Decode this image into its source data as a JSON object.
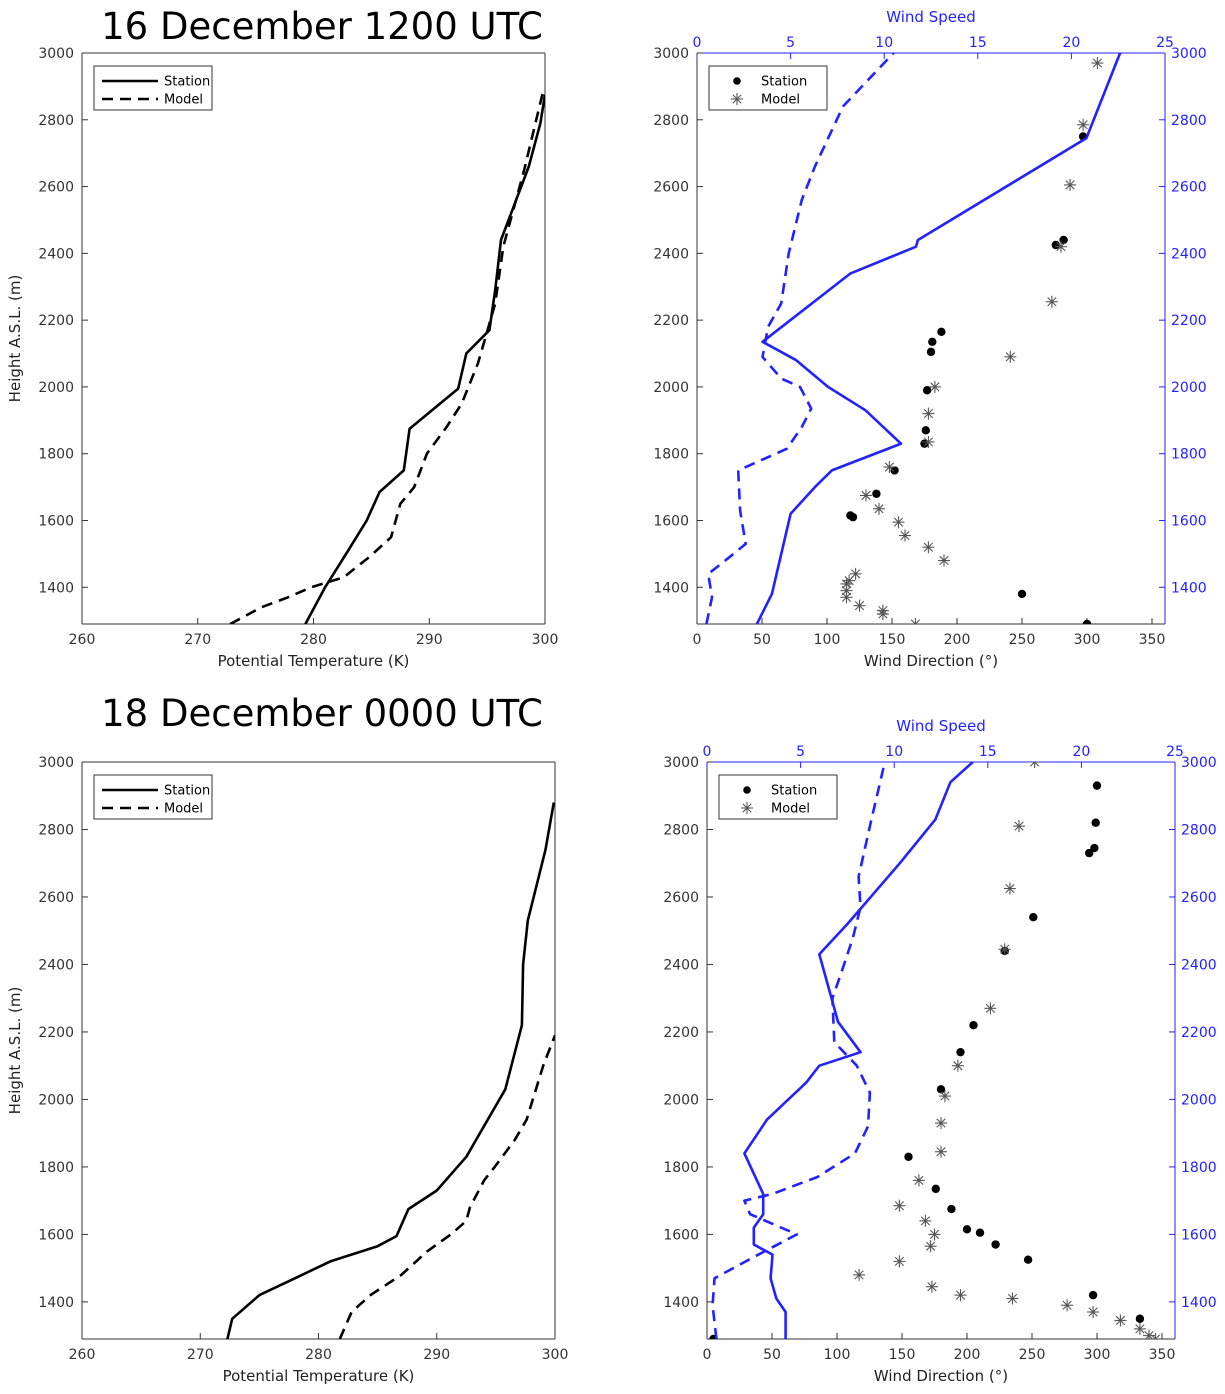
{
  "titles": [
    "16 December 1200 UTC",
    "18 December 0000 UTC"
  ],
  "chart_data": [
    {
      "type": "line",
      "title": "16 December 1200 UTC",
      "xlabel": "Potential Temperature (K)",
      "ylabel": "Height A.S.L. (m)",
      "xlim": [
        260,
        300
      ],
      "ylim": [
        1290,
        3000
      ],
      "xticks": [
        260,
        270,
        280,
        290,
        300
      ],
      "yticks": [
        1400,
        1600,
        1800,
        2000,
        2200,
        2400,
        2600,
        2800,
        3000
      ],
      "legend": "top-left",
      "series": [
        {
          "name": "Station",
          "style": "solid",
          "color": "#000000",
          "points": [
            [
              279.3,
              1290
            ],
            [
              281.0,
              1400
            ],
            [
              283.0,
              1510
            ],
            [
              284.6,
              1600
            ],
            [
              285.7,
              1685
            ],
            [
              287.8,
              1750
            ],
            [
              288.3,
              1875
            ],
            [
              292.5,
              1995
            ],
            [
              293.2,
              2100
            ],
            [
              295.2,
              2170
            ],
            [
              295.7,
              2290
            ],
            [
              296.2,
              2440
            ],
            [
              298.6,
              2660
            ],
            [
              299.6,
              2790
            ],
            [
              300.0,
              2875
            ]
          ]
        },
        {
          "name": "Model",
          "style": "dashed",
          "color": "#000000",
          "points": [
            [
              272.8,
              1290
            ],
            [
              275.5,
              1340
            ],
            [
              277.8,
              1370
            ],
            [
              279.8,
              1400
            ],
            [
              282.6,
              1430
            ],
            [
              284.8,
              1490
            ],
            [
              286.7,
              1550
            ],
            [
              287.5,
              1650
            ],
            [
              288.7,
              1700
            ],
            [
              289.8,
              1800
            ],
            [
              291.5,
              1880
            ],
            [
              292.8,
              1950
            ],
            [
              294.2,
              2070
            ],
            [
              295.0,
              2165
            ],
            [
              295.7,
              2250
            ],
            [
              296.4,
              2420
            ],
            [
              298.2,
              2650
            ],
            [
              299.8,
              2880
            ]
          ]
        }
      ]
    },
    {
      "type": "scatter",
      "title": "",
      "xlabel": "Wind Direction (°)",
      "x2label": "Wind Speed",
      "xlim": [
        0,
        360
      ],
      "x2lim": [
        0,
        25
      ],
      "ylim": [
        1290,
        3000
      ],
      "xticks": [
        0,
        50,
        100,
        150,
        200,
        250,
        300,
        350
      ],
      "x2ticks": [
        0,
        5,
        10,
        15,
        20,
        25
      ],
      "yticks": [
        1400,
        1600,
        1800,
        2000,
        2200,
        2400,
        2600,
        2800,
        3000
      ],
      "legend": "top-left",
      "series": [
        {
          "name": "Station",
          "marker": "dot",
          "color": "#000000",
          "axis": "direction",
          "points": [
            [
              300,
              1290
            ],
            [
              250,
              1380
            ],
            [
              120,
              1610
            ],
            [
              118,
              1615
            ],
            [
              138,
              1680
            ],
            [
              152,
              1750
            ],
            [
              175,
              1830
            ],
            [
              176,
              1870
            ],
            [
              177,
              1990
            ],
            [
              188,
              2165
            ],
            [
              180,
              2105
            ],
            [
              181,
              2135
            ],
            [
              276,
              2425
            ],
            [
              282,
              2440
            ],
            [
              297,
              2750
            ]
          ]
        },
        {
          "name": "Model",
          "marker": "star",
          "color": "#555555",
          "axis": "direction",
          "points": [
            [
              168,
              1290
            ],
            [
              143,
              1320
            ],
            [
              143,
              1330
            ],
            [
              125,
              1345
            ],
            [
              115,
              1370
            ],
            [
              115,
              1390
            ],
            [
              115,
              1410
            ],
            [
              117,
              1420
            ],
            [
              122,
              1440
            ],
            [
              190,
              1480
            ],
            [
              178,
              1520
            ],
            [
              160,
              1555
            ],
            [
              155,
              1595
            ],
            [
              140,
              1635
            ],
            [
              130,
              1675
            ],
            [
              148,
              1760
            ],
            [
              178,
              1835
            ],
            [
              178,
              1920
            ],
            [
              183,
              2000
            ],
            [
              241,
              2090
            ],
            [
              273,
              2255
            ],
            [
              280,
              2420
            ],
            [
              287,
              2605
            ],
            [
              297,
              2785
            ],
            [
              308,
              2970
            ]
          ]
        },
        {
          "name": "",
          "style": "solid",
          "color": "#2222ff",
          "axis": "speed",
          "points": [
            [
              3.2,
              1290
            ],
            [
              4.0,
              1380
            ],
            [
              5.0,
              1620
            ],
            [
              6.3,
              1700
            ],
            [
              7.2,
              1750
            ],
            [
              10.9,
              1830
            ],
            [
              9.0,
              1930
            ],
            [
              7.0,
              2000
            ],
            [
              5.3,
              2080
            ],
            [
              3.5,
              2135
            ],
            [
              8.2,
              2340
            ],
            [
              11.7,
              2420
            ],
            [
              11.8,
              2440
            ],
            [
              20.8,
              2745
            ],
            [
              22.6,
              3000
            ]
          ]
        },
        {
          "name": "",
          "style": "dashed",
          "color": "#2222ff",
          "axis": "speed",
          "points": [
            [
              0.5,
              1290
            ],
            [
              0.8,
              1370
            ],
            [
              0.6,
              1440
            ],
            [
              1.4,
              1475
            ],
            [
              2.6,
              1530
            ],
            [
              2.3,
              1630
            ],
            [
              2.2,
              1750
            ],
            [
              4.8,
              1815
            ],
            [
              5.6,
              1880
            ],
            [
              6.1,
              1935
            ],
            [
              5.5,
              2000
            ],
            [
              4.5,
              2025
            ],
            [
              3.5,
              2090
            ],
            [
              3.8,
              2180
            ],
            [
              4.5,
              2250
            ],
            [
              4.9,
              2400
            ],
            [
              5.6,
              2560
            ],
            [
              6.3,
              2660
            ],
            [
              7.8,
              2840
            ],
            [
              10.5,
              3000
            ]
          ]
        }
      ]
    },
    {
      "type": "line",
      "title": "18 December 0000 UTC",
      "xlabel": "Potential Temperature (K)",
      "ylabel": "Height A.S.L. (m)",
      "xlim": [
        260,
        300
      ],
      "ylim": [
        1290,
        3000
      ],
      "xticks": [
        260,
        270,
        280,
        290,
        300
      ],
      "yticks": [
        1400,
        1600,
        1800,
        2000,
        2200,
        2400,
        2600,
        2800,
        3000
      ],
      "legend": "top-left",
      "series": [
        {
          "name": "Station",
          "style": "solid",
          "color": "#000000",
          "points": [
            [
              272.3,
              1290
            ],
            [
              272.7,
              1350
            ],
            [
              275.0,
              1420
            ],
            [
              278.0,
              1470
            ],
            [
              281.0,
              1520
            ],
            [
              285.0,
              1565
            ],
            [
              286.6,
              1595
            ],
            [
              287.6,
              1675
            ],
            [
              290.0,
              1730
            ],
            [
              292.5,
              1830
            ],
            [
              295.8,
              2030
            ],
            [
              297.2,
              2220
            ],
            [
              297.3,
              2400
            ],
            [
              297.7,
              2530
            ],
            [
              299.2,
              2740
            ],
            [
              299.9,
              2880
            ]
          ]
        },
        {
          "name": "Model",
          "style": "dashed",
          "color": "#000000",
          "points": [
            [
              281.8,
              1290
            ],
            [
              282.8,
              1370
            ],
            [
              284.4,
              1420
            ],
            [
              287.0,
              1480
            ],
            [
              289.2,
              1550
            ],
            [
              291.2,
              1600
            ],
            [
              292.5,
              1640
            ],
            [
              292.8,
              1680
            ],
            [
              294.0,
              1760
            ],
            [
              294.9,
              1800
            ],
            [
              296.6,
              1880
            ],
            [
              297.6,
              1940
            ],
            [
              299.0,
              2100
            ],
            [
              300.0,
              2190
            ]
          ]
        }
      ]
    },
    {
      "type": "scatter",
      "title": "",
      "xlabel": "Wind Direction (°)",
      "x2label": "Wind Speed",
      "xlim": [
        0,
        360
      ],
      "x2lim": [
        0,
        25
      ],
      "ylim": [
        1290,
        3000
      ],
      "xticks": [
        0,
        50,
        100,
        150,
        200,
        250,
        300,
        350
      ],
      "x2ticks": [
        0,
        5,
        10,
        15,
        20,
        25
      ],
      "yticks": [
        1400,
        1600,
        1800,
        2000,
        2200,
        2400,
        2600,
        2800,
        3000
      ],
      "legend": "top-left",
      "series": [
        {
          "name": "Station",
          "marker": "dot",
          "color": "#000000",
          "axis": "direction",
          "points": [
            [
              5,
              1290
            ],
            [
              333,
              1350
            ],
            [
              297,
              1420
            ],
            [
              247,
              1525
            ],
            [
              222,
              1570
            ],
            [
              210,
              1605
            ],
            [
              200,
              1615
            ],
            [
              188,
              1675
            ],
            [
              176,
              1735
            ],
            [
              155,
              1830
            ],
            [
              180,
              2030
            ],
            [
              195,
              2140
            ],
            [
              205,
              2220
            ],
            [
              229,
              2440
            ],
            [
              251,
              2540
            ],
            [
              294,
              2730
            ],
            [
              298,
              2745
            ],
            [
              299,
              2820
            ],
            [
              300,
              2930
            ]
          ]
        },
        {
          "name": "Model",
          "marker": "star",
          "color": "#555555",
          "axis": "direction",
          "points": [
            [
              345,
              1290
            ],
            [
              340,
              1300
            ],
            [
              333,
              1320
            ],
            [
              318,
              1345
            ],
            [
              297,
              1370
            ],
            [
              277,
              1390
            ],
            [
              235,
              1410
            ],
            [
              195,
              1420
            ],
            [
              173,
              1445
            ],
            [
              117,
              1480
            ],
            [
              148,
              1520
            ],
            [
              172,
              1565
            ],
            [
              175,
              1600
            ],
            [
              168,
              1640
            ],
            [
              148,
              1685
            ],
            [
              163,
              1760
            ],
            [
              180,
              1845
            ],
            [
              180,
              1930
            ],
            [
              183,
              2010
            ],
            [
              193,
              2100
            ],
            [
              218,
              2270
            ],
            [
              229,
              2445
            ],
            [
              233,
              2625
            ],
            [
              240,
              2810
            ],
            [
              252,
              3000
            ]
          ]
        },
        {
          "name": "",
          "style": "solid",
          "color": "#2222ff",
          "axis": "speed",
          "points": [
            [
              4.2,
              1290
            ],
            [
              4.2,
              1370
            ],
            [
              3.7,
              1410
            ],
            [
              3.4,
              1470
            ],
            [
              3.5,
              1540
            ],
            [
              2.5,
              1570
            ],
            [
              2.5,
              1620
            ],
            [
              3.0,
              1660
            ],
            [
              3.0,
              1720
            ],
            [
              2.0,
              1840
            ],
            [
              3.2,
              1940
            ],
            [
              5.3,
              2050
            ],
            [
              6.0,
              2100
            ],
            [
              8.2,
              2140
            ],
            [
              7.0,
              2230
            ],
            [
              6.5,
              2330
            ],
            [
              6.0,
              2430
            ],
            [
              7.5,
              2520
            ],
            [
              10.3,
              2700
            ],
            [
              12.2,
              2830
            ],
            [
              13.0,
              2940
            ],
            [
              14.2,
              3000
            ]
          ]
        },
        {
          "name": "",
          "style": "dashed",
          "color": "#2222ff",
          "axis": "speed",
          "points": [
            [
              0.5,
              1290
            ],
            [
              0.3,
              1390
            ],
            [
              0.4,
              1470
            ],
            [
              2.4,
              1530
            ],
            [
              4.8,
              1600
            ],
            [
              2.3,
              1660
            ],
            [
              2.0,
              1700
            ],
            [
              3.5,
              1720
            ],
            [
              5.9,
              1770
            ],
            [
              7.9,
              1840
            ],
            [
              8.6,
              1920
            ],
            [
              8.7,
              2020
            ],
            [
              8.0,
              2100
            ],
            [
              6.8,
              2170
            ],
            [
              6.7,
              2300
            ],
            [
              7.2,
              2380
            ],
            [
              7.8,
              2480
            ],
            [
              8.2,
              2570
            ],
            [
              8.1,
              2660
            ],
            [
              8.7,
              2810
            ],
            [
              9.5,
              3000
            ]
          ]
        }
      ]
    }
  ]
}
